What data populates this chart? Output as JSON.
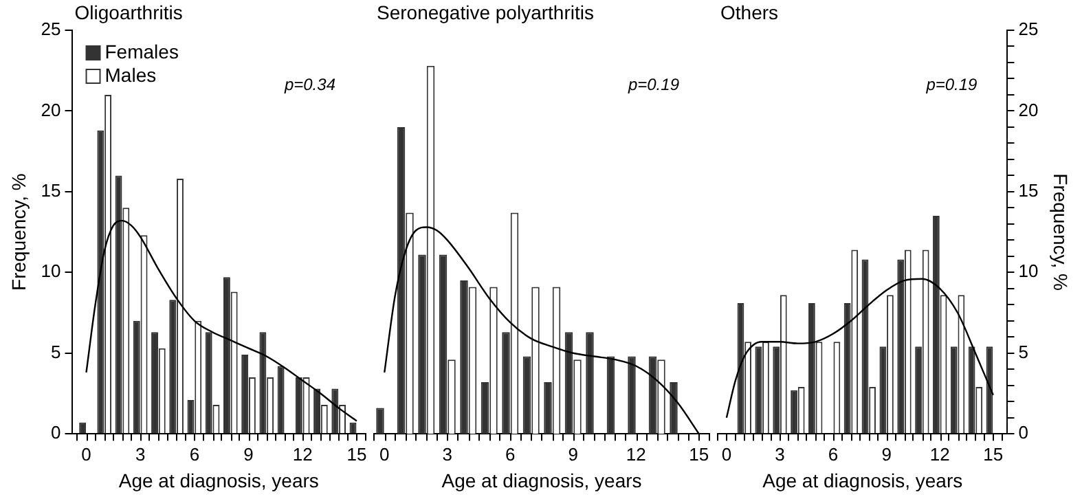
{
  "chart_data": [
    {
      "type": "bar",
      "title": "Oligoarthritis",
      "xlabel": "Age at diagnosis, years",
      "ylabel": "Frequency, %",
      "annotations": [
        "p=0.34"
      ],
      "x": [
        0,
        1,
        2,
        3,
        4,
        5,
        6,
        7,
        8,
        9,
        10,
        11,
        12,
        13,
        14,
        15
      ],
      "series": [
        {
          "name": "Females",
          "color": "#333333",
          "values": [
            0.7,
            18.8,
            16.0,
            7.0,
            6.3,
            8.3,
            2.1,
            6.3,
            9.7,
            4.9,
            6.3,
            4.2,
            3.5,
            2.8,
            2.8,
            0.7
          ]
        },
        {
          "name": "Males",
          "color": "#ffffff",
          "values": [
            null,
            21.0,
            14.0,
            12.3,
            5.3,
            15.8,
            7.0,
            1.8,
            8.8,
            3.5,
            3.5,
            null,
            3.5,
            1.8,
            1.8,
            null
          ]
        },
        {
          "type": "line",
          "color": "#000000",
          "x": [
            0,
            0.5,
            1,
            1.5,
            2,
            2.5,
            3,
            4,
            5,
            6,
            7,
            8,
            9,
            10,
            11,
            12,
            13,
            14,
            15
          ],
          "values": [
            3.8,
            8.0,
            11.3,
            12.9,
            13.2,
            12.9,
            12.2,
            10.2,
            8.4,
            7.0,
            6.3,
            5.8,
            5.3,
            4.8,
            4.1,
            3.3,
            2.5,
            1.6,
            0.8
          ]
        }
      ],
      "xlim": [
        -0.8,
        15.5
      ],
      "xticks": [
        0,
        {
          "value": 1,
          "label": null
        },
        {
          "value": 2,
          "label": null
        },
        3,
        {
          "value": 4,
          "label": null
        },
        {
          "value": 5,
          "label": null
        },
        6,
        {
          "value": 7,
          "label": null
        },
        {
          "value": 8,
          "label": null
        },
        9,
        {
          "value": 10,
          "label": null
        },
        {
          "value": 11,
          "label": null
        },
        12,
        {
          "value": 13,
          "label": null
        },
        {
          "value": 14,
          "label": null
        },
        15
      ],
      "ylim": [
        0,
        25
      ],
      "yticks": [
        0,
        5,
        10,
        15,
        20,
        25
      ],
      "legend": "top left",
      "marker": "none",
      "grid": false
    },
    {
      "type": "bar",
      "title": "Seronegative polyarthritis",
      "xlabel": "Age at diagnosis, years",
      "annotations": [
        "p=0.19"
      ],
      "series": [
        {
          "color": "#333333",
          "x": [
            0,
            1,
            2,
            3,
            4,
            5,
            6,
            7,
            8,
            9,
            10,
            11,
            12,
            13,
            14
          ],
          "values": [
            1.6,
            19.0,
            11.1,
            11.1,
            9.5,
            3.2,
            6.3,
            4.8,
            3.2,
            6.3,
            6.3,
            4.8,
            4.8,
            4.8,
            3.2
          ]
        },
        {
          "color": "#ffffff",
          "x": [
            1,
            2,
            3,
            4,
            5,
            6,
            7,
            8,
            9,
            10,
            11,
            12,
            13
          ],
          "values": [
            13.7,
            22.8,
            4.6,
            9.1,
            9.1,
            13.7,
            9.1,
            9.1,
            4.6,
            null,
            null,
            null,
            4.6
          ]
        },
        {
          "type": "line",
          "color": "#000000",
          "x": [
            0,
            0.5,
            1,
            1.5,
            2,
            2.5,
            3,
            4,
            5,
            6,
            7,
            8,
            9,
            10,
            11,
            12,
            13,
            14,
            15
          ],
          "values": [
            3.8,
            8.5,
            11.3,
            12.6,
            12.8,
            12.6,
            12.0,
            10.3,
            8.4,
            6.9,
            5.9,
            5.4,
            5.0,
            4.8,
            4.6,
            4.2,
            3.3,
            1.9,
            0
          ]
        }
      ],
      "xlim": [
        -0.5,
        15.5
      ],
      "xticks": [
        0,
        {
          "value": 1,
          "label": null
        },
        {
          "value": 2,
          "label": null
        },
        3,
        {
          "value": 4,
          "label": null
        },
        {
          "value": 5,
          "label": null
        },
        6,
        {
          "value": 7,
          "label": null
        },
        {
          "value": 8,
          "label": null
        },
        9,
        {
          "value": 10,
          "label": null
        },
        {
          "value": 11,
          "label": null
        },
        12,
        {
          "value": 13,
          "label": null
        },
        {
          "value": 14,
          "label": null
        },
        15
      ],
      "ylim": [
        0,
        25
      ],
      "tick_labels": "x",
      "legend": false,
      "marker": "none",
      "grid": false
    },
    {
      "type": "bar",
      "title": "Others",
      "xlabel": "Age at diagnosis, years",
      "y2label": "Frequency, %",
      "annotations": [
        "p=0.19"
      ],
      "series": [
        {
          "color": "#333333",
          "axis": "y2",
          "x": [
            1,
            2,
            3,
            4,
            5,
            6,
            7,
            8,
            9,
            10,
            11,
            12,
            13,
            14,
            15
          ],
          "values": [
            8.1,
            5.4,
            5.4,
            2.7,
            8.1,
            null,
            8.1,
            10.8,
            5.4,
            10.8,
            5.4,
            13.5,
            5.4,
            5.4,
            5.4
          ]
        },
        {
          "color": "#ffffff",
          "axis": "y2",
          "x": [
            1,
            2,
            3,
            4,
            5,
            6,
            7,
            8,
            9,
            10,
            11,
            12,
            13,
            14
          ],
          "values": [
            5.7,
            5.7,
            8.6,
            2.9,
            5.7,
            5.7,
            11.4,
            2.9,
            8.6,
            11.4,
            11.4,
            8.6,
            8.6,
            2.9
          ]
        },
        {
          "type": "line",
          "color": "#000000",
          "axis": "y2",
          "x": [
            0,
            0.5,
            1,
            1.5,
            2,
            3,
            4,
            5,
            6,
            7,
            8,
            9,
            10,
            11,
            12,
            13,
            14,
            15
          ],
          "values": [
            1.0,
            3.3,
            4.8,
            5.5,
            5.7,
            5.7,
            5.6,
            5.7,
            6.2,
            7.0,
            8.0,
            8.9,
            9.5,
            9.6,
            9.0,
            7.5,
            5.0,
            2.4
          ]
        }
      ],
      "xlim": [
        -0.5,
        15.8
      ],
      "xticks": [
        0,
        {
          "value": 1,
          "label": null
        },
        {
          "value": 2,
          "label": null
        },
        3,
        {
          "value": 4,
          "label": null
        },
        {
          "value": 5,
          "label": null
        },
        6,
        {
          "value": 7,
          "label": null
        },
        {
          "value": 8,
          "label": null
        },
        9,
        {
          "value": 10,
          "label": null
        },
        {
          "value": 11,
          "label": null
        },
        12,
        {
          "value": 13,
          "label": null
        },
        {
          "value": 14,
          "label": null
        },
        15
      ],
      "y2lim": [
        0,
        25
      ],
      "y2ticks": [
        0,
        5,
        10,
        15,
        20,
        25,
        {
          "value": 1,
          "label": null
        },
        {
          "value": 2,
          "label": null
        },
        {
          "value": 3,
          "label": null
        },
        {
          "value": 4,
          "label": null
        },
        {
          "value": 6,
          "label": null
        },
        {
          "value": 7,
          "label": null
        },
        {
          "value": 8,
          "label": null
        },
        {
          "value": 9,
          "label": null
        },
        {
          "value": 11,
          "label": null
        },
        {
          "value": 12,
          "label": null
        },
        {
          "value": 13,
          "label": null
        },
        {
          "value": 14,
          "label": null
        },
        {
          "value": 16,
          "label": null
        },
        {
          "value": 17,
          "label": null
        },
        {
          "value": 18,
          "label": null
        },
        {
          "value": 19,
          "label": null
        },
        {
          "value": 21,
          "label": null
        },
        {
          "value": 22,
          "label": null
        },
        {
          "value": 23,
          "label": null
        },
        {
          "value": 24,
          "label": null
        }
      ],
      "legend": false,
      "marker": "none",
      "grid": false
    }
  ]
}
